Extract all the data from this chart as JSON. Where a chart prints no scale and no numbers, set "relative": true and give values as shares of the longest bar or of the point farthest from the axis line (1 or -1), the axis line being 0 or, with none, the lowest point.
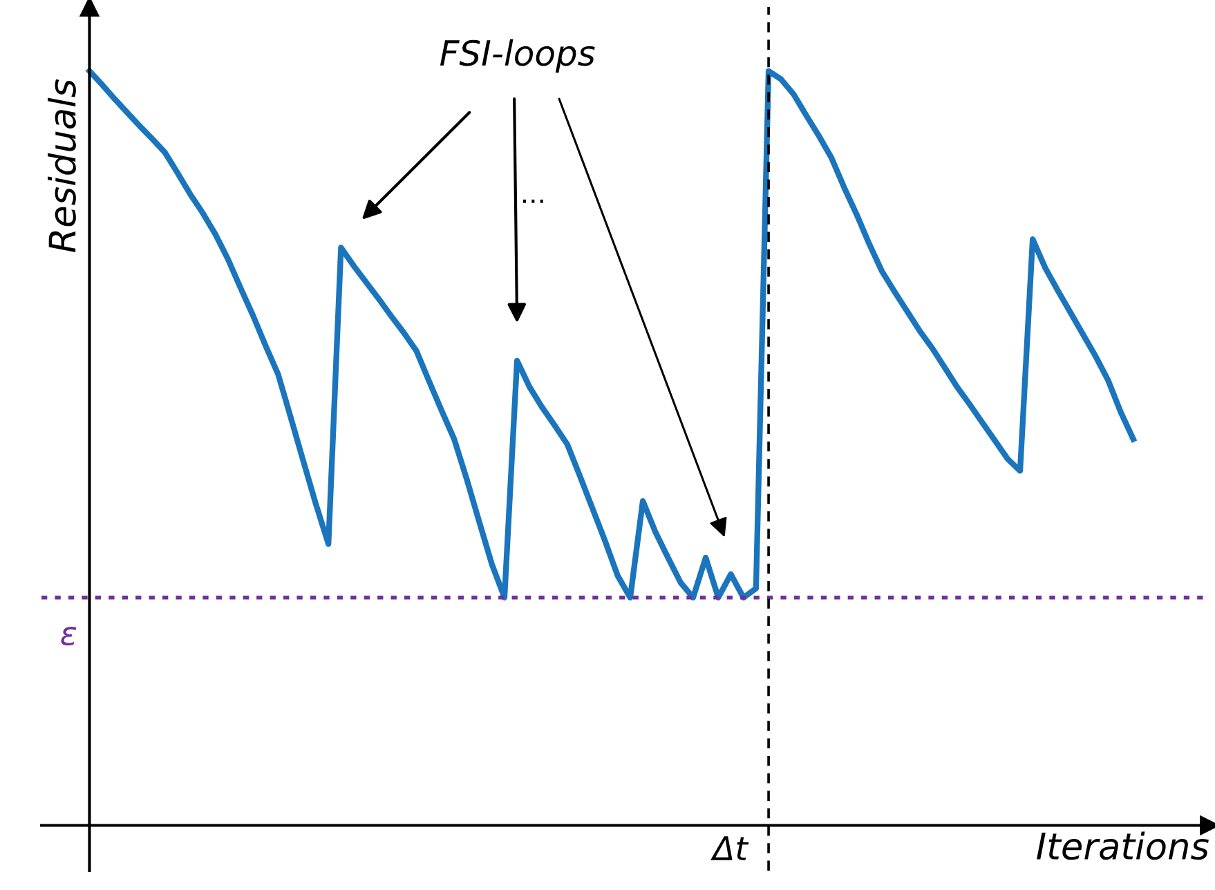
{
  "chart_data": {
    "type": "line",
    "relative": true,
    "xlabel": "Iterations",
    "ylabel": "Residuals",
    "categories": [
      null,
      null,
      null,
      null,
      null,
      null,
      null,
      null,
      null,
      null,
      null,
      null,
      null,
      null,
      null,
      null,
      null,
      null,
      null,
      null,
      null,
      null,
      null,
      null,
      null,
      null,
      null,
      null,
      null,
      null,
      null,
      null,
      null,
      null,
      null,
      null,
      null,
      null,
      null,
      null,
      null,
      null,
      null,
      null,
      null,
      null,
      null,
      null,
      null,
      null,
      null,
      null,
      null,
      null,
      null,
      null,
      null,
      null,
      null,
      null,
      null,
      null,
      null,
      null,
      null,
      null,
      null,
      null,
      null,
      null,
      null,
      null,
      null,
      null,
      null,
      null,
      null,
      null,
      null,
      null,
      null,
      null,
      null,
      null
    ],
    "series": [
      {
        "color": "#1b75bc",
        "values": [
          1.0,
          0.982,
          0.963,
          0.945,
          0.927,
          0.91,
          0.892,
          0.865,
          0.837,
          0.812,
          0.784,
          0.751,
          0.713,
          0.676,
          0.636,
          0.598,
          0.541,
          0.483,
          0.426,
          0.373,
          0.766,
          0.742,
          0.72,
          0.698,
          0.675,
          0.653,
          0.629,
          0.589,
          0.55,
          0.512,
          0.459,
          0.402,
          0.346,
          0.302,
          0.616,
          0.581,
          0.554,
          0.53,
          0.505,
          0.463,
          0.42,
          0.377,
          0.331,
          0.302,
          0.43,
          0.389,
          0.355,
          0.322,
          0.302,
          0.355,
          0.302,
          0.333,
          0.302,
          0.314,
          1.0,
          0.989,
          0.969,
          0.941,
          0.914,
          0.885,
          0.846,
          0.81,
          0.771,
          0.735,
          0.708,
          0.682,
          0.656,
          0.633,
          0.607,
          0.581,
          0.558,
          0.534,
          0.51,
          0.486,
          0.47,
          0.777,
          0.739,
          0.709,
          0.68,
          0.651,
          0.622,
          0.59,
          0.548,
          0.512
        ]
      }
    ],
    "ref_lines": [
      {
        "axis": "y",
        "value": 0.302,
        "label": "ε",
        "color": "#7030a0",
        "line_style": "dotted"
      }
    ],
    "annotations": [
      "FSI-loops",
      "...",
      "Δt"
    ]
  }
}
